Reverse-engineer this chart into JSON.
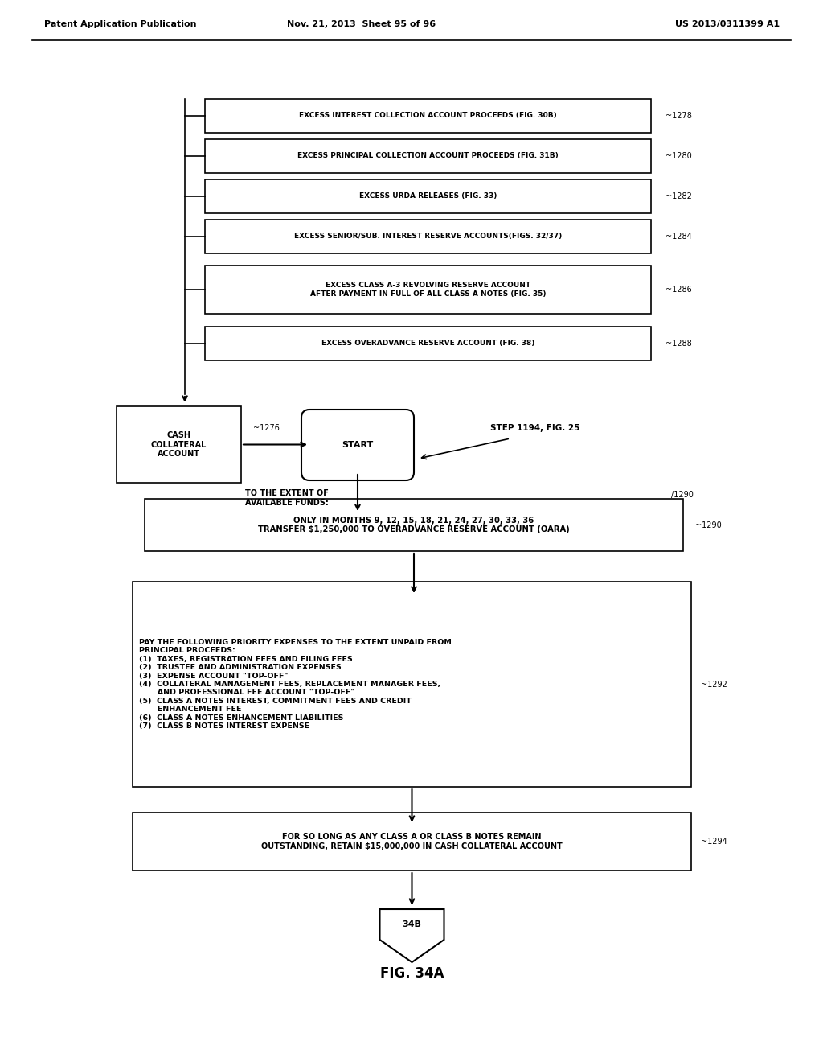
{
  "header_left": "Patent Application Publication",
  "header_mid": "Nov. 21, 2013  Sheet 95 of 96",
  "header_right": "US 2013/0311399 A1",
  "bg_color": "#ffffff",
  "text_color": "#000000",
  "input_boxes": [
    {
      "label": "EXCESS INTEREST COLLECTION ACCOUNT PROCEEDS (FIG. 30B)",
      "ref": "1278"
    },
    {
      "label": "EXCESS PRINCIPAL COLLECTION ACCOUNT PROCEEDS (FIG. 31B)",
      "ref": "1280"
    },
    {
      "label": "EXCESS URDA RELEASES (FIG. 33)",
      "ref": "1282"
    },
    {
      "label": "EXCESS SENIOR/SUB. INTEREST RESERVE ACCOUNTS(FIGS. 32/37)",
      "ref": "1284"
    },
    {
      "label": "EXCESS CLASS A-3 REVOLVING RESERVE ACCOUNT\nAFTER PAYMENT IN FULL OF ALL CLASS A NOTES (FIG. 35)",
      "ref": "1286"
    },
    {
      "label": "EXCESS OVERADVANCE RESERVE ACCOUNT (FIG. 38)",
      "ref": "1288"
    }
  ],
  "cash_box": {
    "label": "CASH\nCOLLATERAL\nACCOUNT",
    "ref": "1276"
  },
  "start_label": "START",
  "step_label": "STEP 1194, FIG. 25",
  "box1290_label": "TO THE EXTENT OF\nAVAILABLE FUNDS:",
  "box1290_ref": "1290",
  "box1290_text": "ONLY IN MONTHS 9, 12, 15, 18, 21, 24, 27, 30, 33, 36\nTRANSFER $1,250,000 TO OVERADVANCE RESERVE ACCOUNT (OARA)",
  "box1292_ref": "1292",
  "box1292_text": "PAY THE FOLLOWING PRIORITY EXPENSES TO THE EXTENT UNPAID FROM\nPRINCIPAL PROCEEDS:\n(1)  TAXES, REGISTRATION FEES AND FILING FEES\n(2)  TRUSTEE AND ADMINISTRATION EXPENSES\n(3)  EXPENSE ACCOUNT \"TOP-OFF\"\n(4)  COLLATERAL MANAGEMENT FEES, REPLACEMENT MANAGER FEES,\n       AND PROFESSIONAL FEE ACCOUNT \"TOP-OFF\"\n(5)  CLASS A NOTES INTEREST, COMMITMENT FEES AND CREDIT\n       ENHANCEMENT FEE\n(6)  CLASS A NOTES ENHANCEMENT LIABILITIES\n(7)  CLASS B NOTES INTEREST EXPENSE",
  "box1294_text": "FOR SO LONG AS ANY CLASS A OR CLASS B NOTES REMAIN\nOUTSTANDING, RETAIN $15,000,000 IN CASH COLLATERAL ACCOUNT",
  "box1294_ref": "1294",
  "next_label": "34B",
  "fig_label": "FIG. 34A",
  "tilde": "~"
}
